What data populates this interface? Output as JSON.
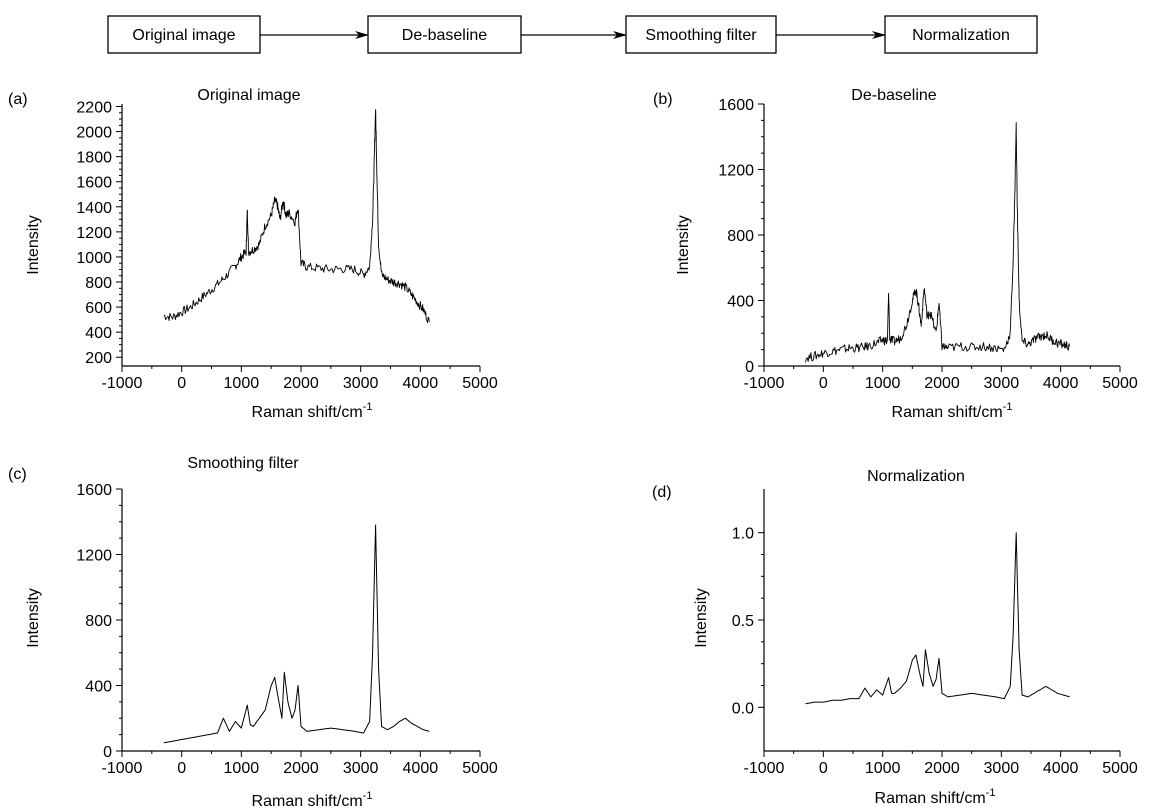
{
  "flow": {
    "steps": [
      "Original image",
      "De-baseline",
      "Smoothing filter",
      "Normalization"
    ]
  },
  "chart_data": [
    {
      "type": "line",
      "panel": "(a)",
      "title": "Original image",
      "xlabel": "Raman shift/cm",
      "xlabel_sup": "-1",
      "ylabel": "Intensity",
      "xlim": [
        -1000,
        5000
      ],
      "ylim": [
        130,
        2220
      ],
      "xticks": [
        -1000,
        0,
        1000,
        2000,
        3000,
        4000,
        5000
      ],
      "xtick_labels": [
        "-1000",
        "0",
        "1000",
        "2000",
        "3000",
        "4000",
        "5000"
      ],
      "yticks": [
        200,
        400,
        600,
        800,
        1000,
        1200,
        1400,
        1600,
        1800,
        2000,
        2200
      ],
      "ytick_labels": [
        "200",
        "400",
        "600",
        "800",
        "1000",
        "1200",
        "1400",
        "1600",
        "1800",
        "2000",
        "2200"
      ],
      "series": [
        {
          "x": [
            -300,
            -150,
            0,
            150,
            300,
            450,
            600,
            750,
            900,
            1000,
            1080,
            1100,
            1120,
            1200,
            1300,
            1400,
            1500,
            1560,
            1600,
            1650,
            1700,
            1750,
            1800,
            1900,
            1950,
            2000,
            2100,
            2300,
            2500,
            2700,
            2900,
            3050,
            3150,
            3200,
            3230,
            3250,
            3270,
            3300,
            3350,
            3450,
            3550,
            3650,
            3750,
            3850,
            3950,
            4050,
            4150
          ],
          "y": [
            530,
            520,
            560,
            600,
            660,
            720,
            780,
            850,
            930,
            1000,
            1040,
            1380,
            1040,
            1060,
            1100,
            1250,
            1330,
            1450,
            1420,
            1300,
            1450,
            1330,
            1350,
            1280,
            1400,
            950,
            920,
            910,
            900,
            905,
            900,
            860,
            920,
            1300,
            1800,
            2190,
            1700,
            1100,
            860,
            820,
            800,
            790,
            760,
            700,
            640,
            580,
            480
          ]
        }
      ]
    },
    {
      "type": "line",
      "panel": "(b)",
      "title": "De-baseline",
      "xlabel": "Raman shift/cm",
      "xlabel_sup": "-1",
      "ylabel": "Intensity",
      "xlim": [
        -1000,
        5000
      ],
      "ylim": [
        0,
        1600
      ],
      "xticks": [
        -1000,
        0,
        1000,
        2000,
        3000,
        4000,
        5000
      ],
      "xtick_labels": [
        "-1000",
        "0",
        "1000",
        "2000",
        "3000",
        "4000",
        "5000"
      ],
      "yticks": [
        0,
        400,
        800,
        1200,
        1600
      ],
      "ytick_labels": [
        "0",
        "400",
        "800",
        "1200",
        "1600"
      ],
      "series": [
        {
          "x": [
            -300,
            -150,
            0,
            150,
            300,
            450,
            600,
            750,
            900,
            1000,
            1080,
            1100,
            1120,
            1200,
            1300,
            1400,
            1500,
            1560,
            1600,
            1650,
            1700,
            1750,
            1800,
            1900,
            1950,
            2000,
            2100,
            2300,
            2500,
            2700,
            2900,
            3050,
            3150,
            3200,
            3230,
            3250,
            3270,
            3300,
            3350,
            3450,
            3550,
            3650,
            3750,
            3850,
            3950,
            4050,
            4150
          ],
          "y": [
            50,
            60,
            80,
            90,
            100,
            110,
            110,
            120,
            140,
            160,
            150,
            450,
            160,
            150,
            170,
            250,
            400,
            470,
            380,
            250,
            480,
            300,
            330,
            200,
            390,
            120,
            110,
            120,
            115,
            120,
            110,
            100,
            200,
            650,
            1100,
            1470,
            950,
            400,
            150,
            130,
            160,
            180,
            190,
            160,
            140,
            130,
            120
          ]
        }
      ]
    },
    {
      "type": "line",
      "panel": "(c)",
      "title": "Smoothing filter",
      "xlabel": "Raman shift/cm",
      "xlabel_sup": "-1",
      "ylabel": "Intensity",
      "xlim": [
        -1000,
        5000
      ],
      "ylim": [
        0,
        1600
      ],
      "xticks": [
        -1000,
        0,
        1000,
        2000,
        3000,
        4000,
        5000
      ],
      "xtick_labels": [
        "-1000",
        "0",
        "1000",
        "2000",
        "3000",
        "4000",
        "5000"
      ],
      "yticks": [
        0,
        400,
        800,
        1200,
        1600
      ],
      "ytick_labels": [
        "0",
        "400",
        "800",
        "1200",
        "1600"
      ],
      "series": [
        {
          "x": [
            -300,
            -150,
            0,
            150,
            300,
            450,
            600,
            700,
            800,
            900,
            1000,
            1100,
            1150,
            1200,
            1300,
            1400,
            1500,
            1560,
            1620,
            1680,
            1720,
            1780,
            1850,
            1900,
            1950,
            2000,
            2100,
            2300,
            2500,
            2700,
            2900,
            3050,
            3150,
            3200,
            3250,
            3300,
            3350,
            3450,
            3550,
            3650,
            3750,
            3850,
            3950,
            4050,
            4150
          ],
          "y": [
            50,
            60,
            70,
            80,
            90,
            100,
            110,
            200,
            120,
            180,
            140,
            280,
            160,
            150,
            200,
            250,
            400,
            450,
            320,
            200,
            480,
            300,
            200,
            250,
            400,
            150,
            120,
            130,
            140,
            130,
            120,
            110,
            180,
            600,
            1380,
            500,
            150,
            130,
            150,
            180,
            200,
            170,
            150,
            130,
            120
          ]
        }
      ]
    },
    {
      "type": "line",
      "panel": "(d)",
      "title": "Normalization",
      "xlabel": "Raman shift/cm",
      "xlabel_sup": "-1",
      "ylabel": "Intensity",
      "xlim": [
        -1000,
        5000
      ],
      "ylim": [
        -0.25,
        1.25
      ],
      "xticks": [
        -1000,
        0,
        1000,
        2000,
        3000,
        4000,
        5000
      ],
      "xtick_labels": [
        "-1000",
        "0",
        "1000",
        "2000",
        "3000",
        "4000",
        "5000"
      ],
      "yticks": [
        0.0,
        0.5,
        1.0
      ],
      "ytick_labels": [
        "0.0",
        "0.5",
        "1.0"
      ],
      "series": [
        {
          "x": [
            -300,
            -150,
            0,
            150,
            300,
            450,
            600,
            700,
            800,
            900,
            1000,
            1100,
            1150,
            1200,
            1300,
            1400,
            1500,
            1560,
            1620,
            1680,
            1720,
            1780,
            1850,
            1900,
            1950,
            2000,
            2100,
            2300,
            2500,
            2700,
            2900,
            3050,
            3150,
            3200,
            3250,
            3300,
            3350,
            3450,
            3550,
            3650,
            3750,
            3850,
            3950,
            4050,
            4150
          ],
          "y": [
            0.02,
            0.03,
            0.03,
            0.04,
            0.04,
            0.05,
            0.05,
            0.11,
            0.06,
            0.1,
            0.07,
            0.17,
            0.08,
            0.08,
            0.11,
            0.15,
            0.27,
            0.3,
            0.2,
            0.12,
            0.33,
            0.2,
            0.12,
            0.16,
            0.28,
            0.08,
            0.06,
            0.07,
            0.08,
            0.07,
            0.06,
            0.05,
            0.12,
            0.42,
            1.0,
            0.33,
            0.07,
            0.06,
            0.08,
            0.1,
            0.12,
            0.1,
            0.08,
            0.07,
            0.06
          ]
        }
      ]
    }
  ]
}
